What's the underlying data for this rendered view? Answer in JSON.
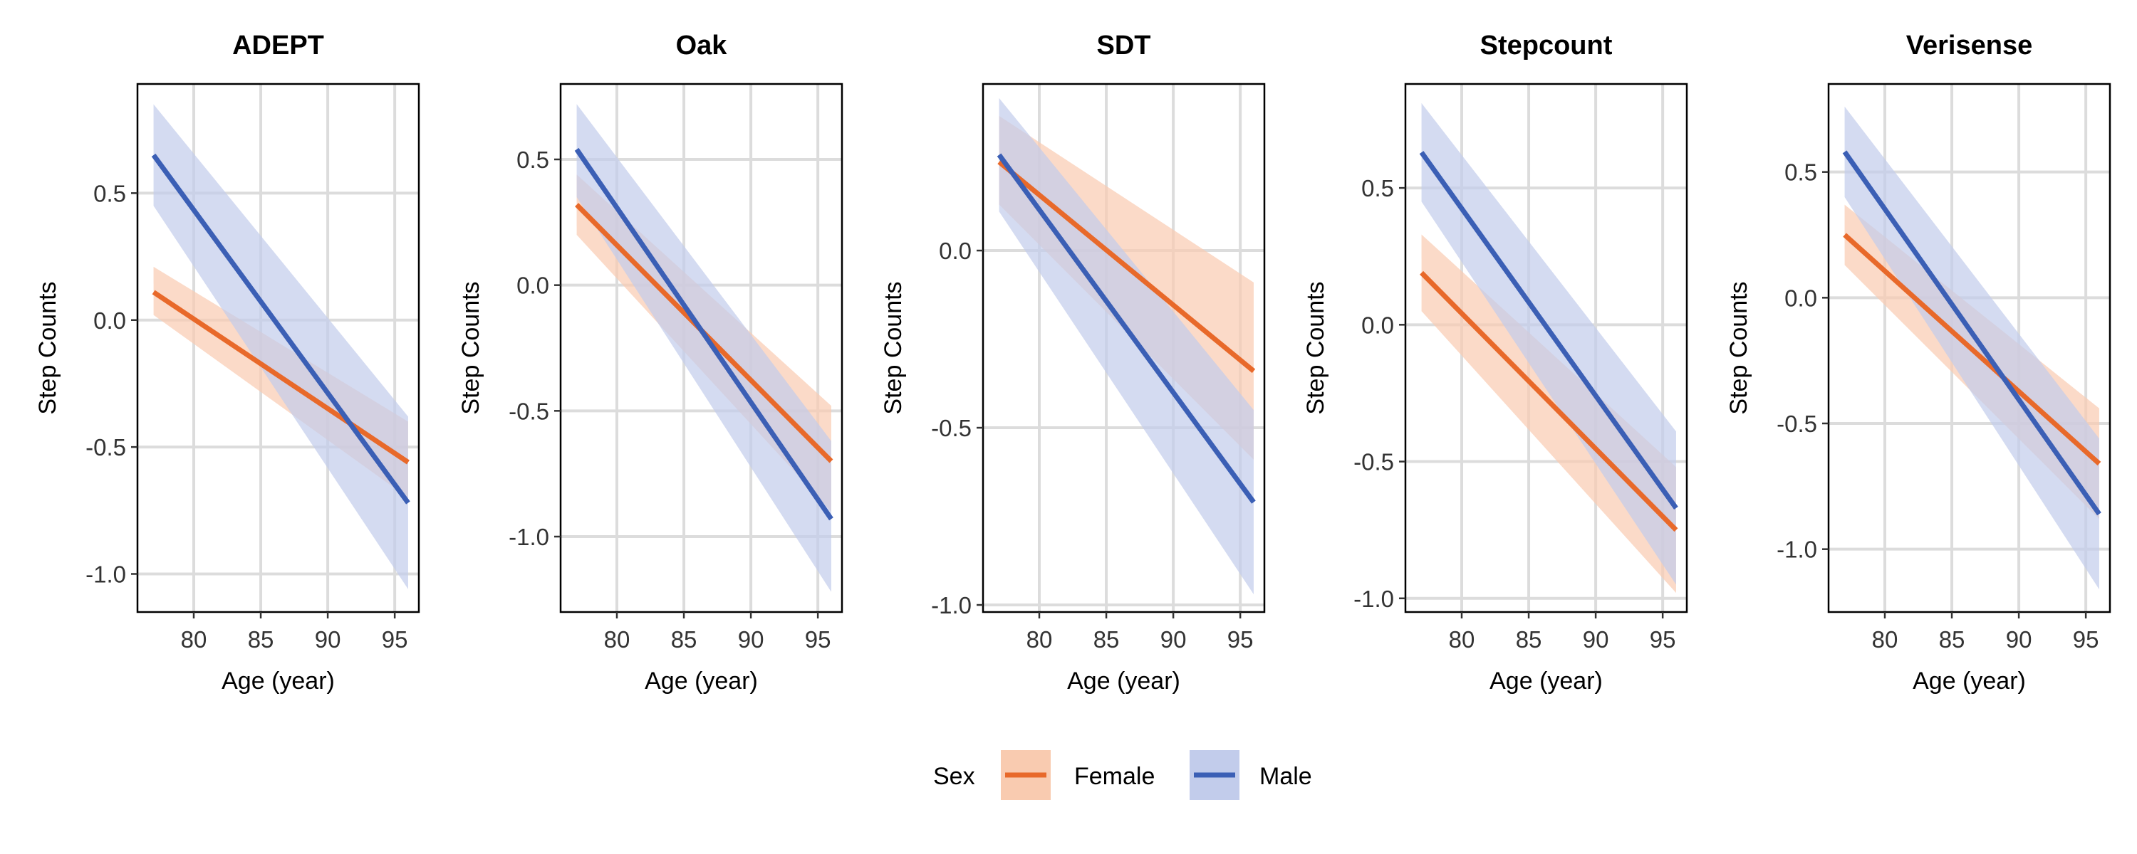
{
  "legend": {
    "title": "Sex",
    "position": "bottom",
    "entries": [
      {
        "label": "Female",
        "color": "#E8692A",
        "fill": "#F9CBB0"
      },
      {
        "label": "Male",
        "color": "#3B5FB5",
        "fill": "#C2CCEB"
      }
    ]
  },
  "chart_data": [
    {
      "type": "line",
      "title": "ADEPT",
      "xlabel": "Age (year)",
      "ylabel": "Step Counts",
      "xlim": [
        75.8,
        96.8
      ],
      "ylim": [
        -1.15,
        0.93
      ],
      "xticks": [
        80,
        85,
        90,
        95
      ],
      "yticks": [
        -1.0,
        -0.5,
        0.0,
        0.5
      ],
      "ytick_labels": [
        "-1.0",
        "-0.5",
        "0.0",
        "0.5"
      ],
      "grid": true,
      "series": [
        {
          "name": "Female",
          "x": [
            77,
            96
          ],
          "y": [
            0.11,
            -0.56
          ],
          "lower": [
            0.02,
            -0.7
          ],
          "upper": [
            0.21,
            -0.4
          ]
        },
        {
          "name": "Male",
          "x": [
            77,
            96
          ],
          "y": [
            0.65,
            -0.72
          ],
          "lower": [
            0.45,
            -1.06
          ],
          "upper": [
            0.85,
            -0.38
          ]
        }
      ]
    },
    {
      "type": "line",
      "title": "Oak",
      "xlabel": "Age (year)",
      "ylabel": "Step Counts",
      "xlim": [
        75.8,
        96.8
      ],
      "ylim": [
        -1.3,
        0.8
      ],
      "xticks": [
        80,
        85,
        90,
        95
      ],
      "yticks": [
        -1.0,
        -0.5,
        0.0,
        0.5
      ],
      "ytick_labels": [
        "-1.0",
        "-0.5",
        "0.0",
        "0.5"
      ],
      "grid": true,
      "series": [
        {
          "name": "Female",
          "x": [
            77,
            96
          ],
          "y": [
            0.32,
            -0.7
          ],
          "lower": [
            0.2,
            -0.9
          ],
          "upper": [
            0.44,
            -0.48
          ]
        },
        {
          "name": "Male",
          "x": [
            77,
            96
          ],
          "y": [
            0.54,
            -0.93
          ],
          "lower": [
            0.35,
            -1.22
          ],
          "upper": [
            0.72,
            -0.62
          ]
        }
      ]
    },
    {
      "type": "line",
      "title": "SDT",
      "xlabel": "Age (year)",
      "ylabel": "Step Counts",
      "xlim": [
        75.8,
        96.8
      ],
      "ylim": [
        -1.02,
        0.47
      ],
      "xticks": [
        80,
        85,
        90,
        95
      ],
      "yticks": [
        -1.0,
        -0.5,
        0.0
      ],
      "ytick_labels": [
        "-1.0",
        "-0.5",
        "0.0"
      ],
      "grid": true,
      "series": [
        {
          "name": "Female",
          "x": [
            77,
            96
          ],
          "y": [
            0.25,
            -0.34
          ],
          "lower": [
            0.13,
            -0.59
          ],
          "upper": [
            0.38,
            -0.09
          ]
        },
        {
          "name": "Male",
          "x": [
            77,
            96
          ],
          "y": [
            0.27,
            -0.71
          ],
          "lower": [
            0.11,
            -0.97
          ],
          "upper": [
            0.43,
            -0.45
          ]
        }
      ]
    },
    {
      "type": "line",
      "title": "Stepcount",
      "xlabel": "Age (year)",
      "ylabel": "Step Counts",
      "xlim": [
        75.8,
        96.8
      ],
      "ylim": [
        -1.05,
        0.88
      ],
      "xticks": [
        80,
        85,
        90,
        95
      ],
      "yticks": [
        -1.0,
        -0.5,
        0.0,
        0.5
      ],
      "ytick_labels": [
        "-1.0",
        "-0.5",
        "0.0",
        "0.5"
      ],
      "grid": true,
      "series": [
        {
          "name": "Female",
          "x": [
            77,
            96
          ],
          "y": [
            0.19,
            -0.75
          ],
          "lower": [
            0.05,
            -0.98
          ],
          "upper": [
            0.33,
            -0.52
          ]
        },
        {
          "name": "Male",
          "x": [
            77,
            96
          ],
          "y": [
            0.63,
            -0.67
          ],
          "lower": [
            0.45,
            -0.95
          ],
          "upper": [
            0.81,
            -0.39
          ]
        }
      ]
    },
    {
      "type": "line",
      "title": "Verisense",
      "xlabel": "Age (year)",
      "ylabel": "Step Counts",
      "xlim": [
        75.8,
        96.8
      ],
      "ylim": [
        -1.25,
        0.85
      ],
      "xticks": [
        80,
        85,
        90,
        95
      ],
      "yticks": [
        -1.0,
        -0.5,
        0.0,
        0.5
      ],
      "ytick_labels": [
        "-1.0",
        "-0.5",
        "0.0",
        "0.5"
      ],
      "grid": true,
      "series": [
        {
          "name": "Female",
          "x": [
            77,
            96
          ],
          "y": [
            0.25,
            -0.66
          ],
          "lower": [
            0.13,
            -0.88
          ],
          "upper": [
            0.37,
            -0.44
          ]
        },
        {
          "name": "Male",
          "x": [
            77,
            96
          ],
          "y": [
            0.58,
            -0.86
          ],
          "lower": [
            0.4,
            -1.16
          ],
          "upper": [
            0.76,
            -0.56
          ]
        }
      ]
    }
  ]
}
